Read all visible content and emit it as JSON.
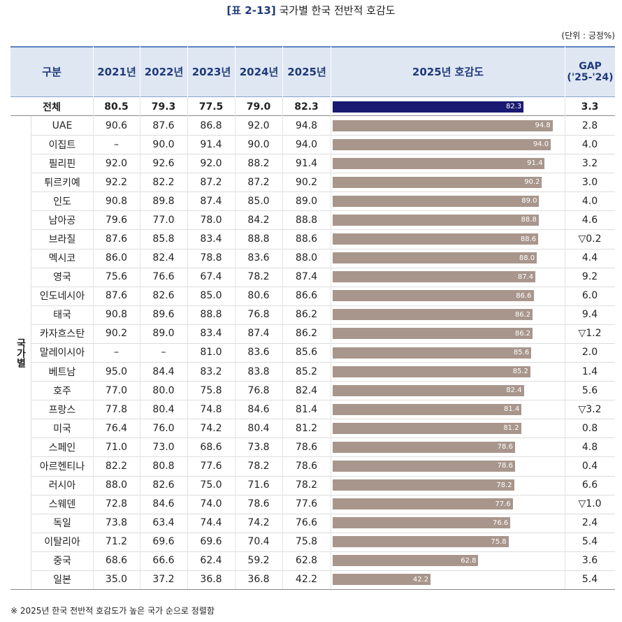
{
  "header": {
    "label": "[표 2-13]",
    "title": "국가별 한국 전반적 호감도",
    "unit": "(단위 : 긍정%)"
  },
  "table": {
    "columns": [
      "구분",
      "2021년",
      "2022년",
      "2023년",
      "2024년",
      "2025년",
      "2025년 호감도"
    ],
    "gap_header": [
      "GAP",
      "('25-'24)"
    ],
    "group_label": "국가별",
    "total": {
      "label": "전체",
      "values": [
        "80.5",
        "79.3",
        "77.5",
        "79.0",
        "82.3"
      ],
      "gap": "3.3"
    },
    "rows": [
      {
        "label": "UAE",
        "values": [
          "90.6",
          "87.6",
          "86.8",
          "92.0",
          "94.8"
        ],
        "gap": "2.8"
      },
      {
        "label": "이집트",
        "values": [
          "–",
          "90.0",
          "91.4",
          "90.0",
          "94.0"
        ],
        "gap": "4.0"
      },
      {
        "label": "필리핀",
        "values": [
          "92.0",
          "92.6",
          "92.0",
          "88.2",
          "91.4"
        ],
        "gap": "3.2"
      },
      {
        "label": "튀르키예",
        "values": [
          "92.2",
          "82.2",
          "87.2",
          "87.2",
          "90.2"
        ],
        "gap": "3.0"
      },
      {
        "label": "인도",
        "values": [
          "90.8",
          "89.8",
          "87.4",
          "85.0",
          "89.0"
        ],
        "gap": "4.0"
      },
      {
        "label": "남아공",
        "values": [
          "79.6",
          "77.0",
          "78.0",
          "84.2",
          "88.8"
        ],
        "gap": "4.6"
      },
      {
        "label": "브라질",
        "values": [
          "87.6",
          "85.8",
          "83.4",
          "88.8",
          "88.6"
        ],
        "gap": "▽0.2"
      },
      {
        "label": "멕시코",
        "values": [
          "86.0",
          "82.4",
          "78.8",
          "83.6",
          "88.0"
        ],
        "gap": "4.4"
      },
      {
        "label": "영국",
        "values": [
          "75.6",
          "76.6",
          "67.4",
          "78.2",
          "87.4"
        ],
        "gap": "9.2"
      },
      {
        "label": "인도네시아",
        "values": [
          "87.6",
          "82.6",
          "85.0",
          "80.6",
          "86.6"
        ],
        "gap": "6.0"
      },
      {
        "label": "태국",
        "values": [
          "90.8",
          "89.6",
          "88.8",
          "76.8",
          "86.2"
        ],
        "gap": "9.4"
      },
      {
        "label": "카자흐스탄",
        "values": [
          "90.2",
          "89.0",
          "83.4",
          "87.4",
          "86.2"
        ],
        "gap": "▽1.2"
      },
      {
        "label": "말레이시아",
        "values": [
          "–",
          "–",
          "81.0",
          "83.6",
          "85.6"
        ],
        "gap": "2.0"
      },
      {
        "label": "베트남",
        "values": [
          "95.0",
          "84.4",
          "83.2",
          "83.8",
          "85.2"
        ],
        "gap": "1.4"
      },
      {
        "label": "호주",
        "values": [
          "77.0",
          "80.0",
          "75.8",
          "76.8",
          "82.4"
        ],
        "gap": "5.6"
      },
      {
        "label": "프랑스",
        "values": [
          "77.8",
          "80.4",
          "74.8",
          "84.6",
          "81.4"
        ],
        "gap": "▽3.2"
      },
      {
        "label": "미국",
        "values": [
          "76.4",
          "76.0",
          "74.2",
          "80.4",
          "81.2"
        ],
        "gap": "0.8"
      },
      {
        "label": "스페인",
        "values": [
          "71.0",
          "73.0",
          "68.6",
          "73.8",
          "78.6"
        ],
        "gap": "4.8"
      },
      {
        "label": "아르헨티나",
        "values": [
          "82.2",
          "80.8",
          "77.6",
          "78.2",
          "78.6"
        ],
        "gap": "0.4"
      },
      {
        "label": "러시아",
        "values": [
          "88.0",
          "82.6",
          "75.0",
          "71.6",
          "78.2"
        ],
        "gap": "6.6"
      },
      {
        "label": "스웨덴",
        "values": [
          "72.8",
          "84.6",
          "74.0",
          "78.6",
          "77.6"
        ],
        "gap": "▽1.0"
      },
      {
        "label": "독일",
        "values": [
          "73.8",
          "63.4",
          "74.4",
          "74.2",
          "76.6"
        ],
        "gap": "2.4"
      },
      {
        "label": "이탈리아",
        "values": [
          "71.2",
          "69.6",
          "69.6",
          "70.4",
          "75.8"
        ],
        "gap": "5.4"
      },
      {
        "label": "중국",
        "values": [
          "68.6",
          "66.6",
          "62.4",
          "59.2",
          "62.8"
        ],
        "gap": "3.6"
      },
      {
        "label": "일본",
        "values": [
          "35.0",
          "37.2",
          "36.8",
          "36.8",
          "42.2"
        ],
        "gap": "5.4"
      }
    ]
  },
  "footnote": "※ 2025년 한국 전반적 호감도가 높은 국가 순으로 정렬함"
}
